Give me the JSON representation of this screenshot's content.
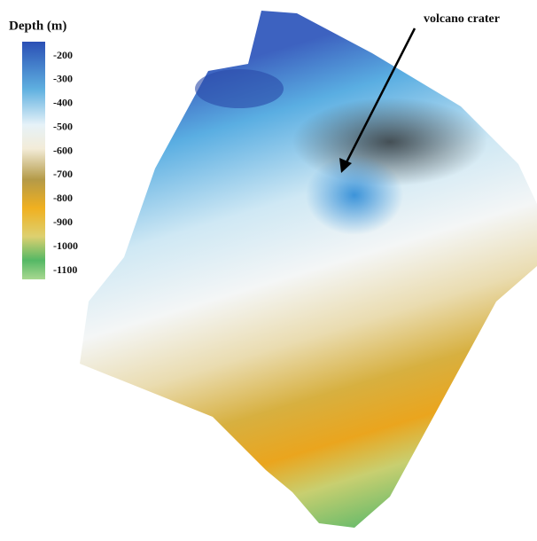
{
  "legend": {
    "title": "Depth (m)",
    "ticks": [
      -200,
      -300,
      -400,
      -500,
      -600,
      -700,
      -800,
      -900,
      -1000,
      -1100
    ]
  },
  "annotation": "volcano crater"
}
